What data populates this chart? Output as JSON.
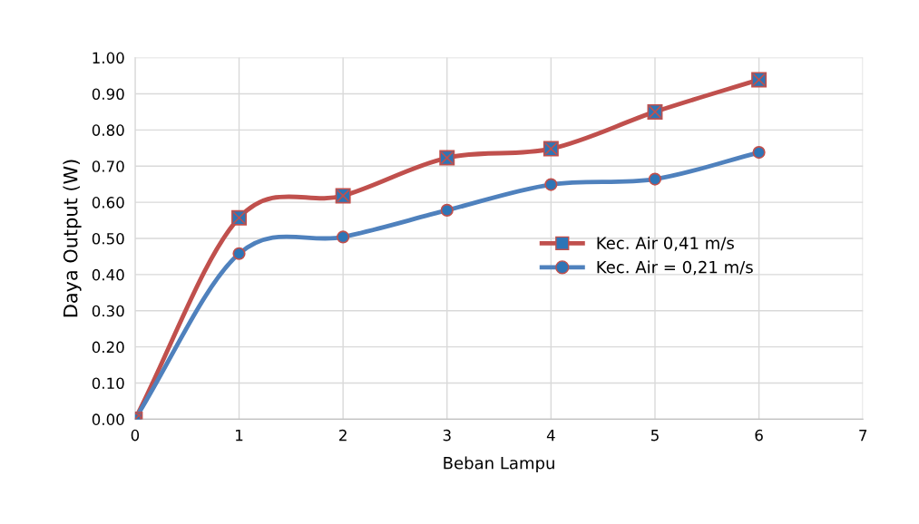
{
  "chart_data": {
    "type": "line",
    "xlabel": "Beban Lampu",
    "ylabel": "Daya Output (W)",
    "x": [
      0,
      1,
      2,
      3,
      4,
      5,
      6
    ],
    "series": [
      {
        "name": "Kec. Air 0,41 m/s",
        "color": "#c0504d",
        "marker": "square",
        "values": [
          0,
          0.557,
          0.618,
          0.723,
          0.748,
          0.85,
          0.939
        ]
      },
      {
        "name": "Kec. Air = 0,21 m/s",
        "color": "#4f81bd",
        "marker": "circle",
        "values": [
          0,
          0.458,
          0.504,
          0.578,
          0.649,
          0.664,
          0.738
        ]
      }
    ],
    "xlim": [
      0,
      7
    ],
    "xticks": [
      0,
      1,
      2,
      3,
      4,
      5,
      6,
      7
    ],
    "ylim": [
      0,
      1.0
    ],
    "yticks": [
      {
        "value": 0,
        "label": "0.00"
      },
      {
        "value": 0.1,
        "label": "0.10"
      },
      {
        "value": 0.2,
        "label": "0.20"
      },
      {
        "value": 0.3,
        "label": "0.30"
      },
      {
        "value": 0.4,
        "label": "0.40"
      },
      {
        "value": 0.5,
        "label": "0.50"
      },
      {
        "value": 0.6,
        "label": "0.60"
      },
      {
        "value": 0.7,
        "label": "0.70"
      },
      {
        "value": 0.8,
        "label": "0.80"
      },
      {
        "value": 0.9,
        "label": "0.90"
      },
      {
        "value": 1.0,
        "label": "1.00"
      }
    ],
    "grid": true,
    "legend": "right",
    "line_style": "solid"
  }
}
